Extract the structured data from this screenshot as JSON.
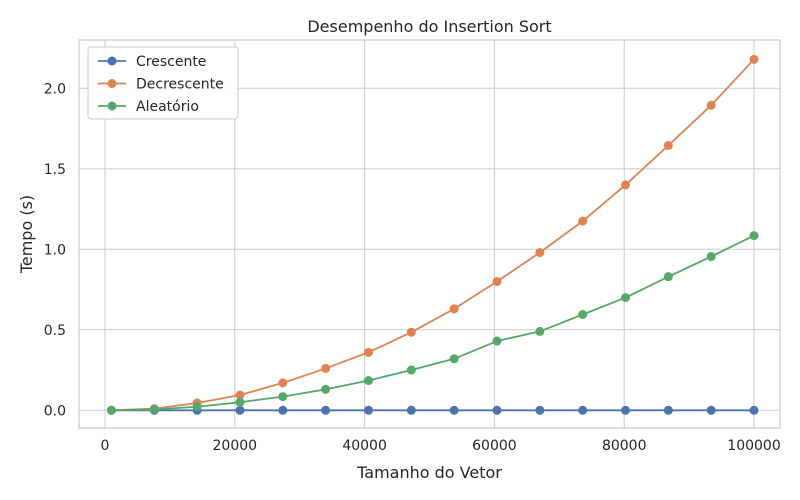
{
  "chart_data": {
    "type": "line",
    "title": "Desempenho do Insertion Sort",
    "xlabel": "Tamanho do Vetor",
    "ylabel": "Tempo (s)",
    "xlim": [
      -4000,
      104000
    ],
    "ylim": [
      -0.11,
      2.3
    ],
    "xticks": [
      0,
      20000,
      40000,
      60000,
      80000,
      100000
    ],
    "xtick_labels": [
      "0",
      "20000",
      "40000",
      "60000",
      "80000",
      "100000"
    ],
    "yticks": [
      0.0,
      0.5,
      1.0,
      1.5,
      2.0
    ],
    "ytick_labels": [
      "0.0",
      "0.5",
      "1.0",
      "1.5",
      "2.0"
    ],
    "grid": true,
    "legend_position": "top-left",
    "x": [
      1000,
      7600,
      14200,
      20800,
      27400,
      34000,
      40600,
      47200,
      53800,
      60400,
      67000,
      73600,
      80200,
      86800,
      93400,
      100000
    ],
    "series": [
      {
        "name": "Crescente",
        "color": "#4c72b0",
        "values": [
          0,
          0,
          0,
          0,
          0,
          0,
          0,
          0,
          0,
          0,
          0,
          0,
          0,
          0,
          0,
          0
        ]
      },
      {
        "name": "Decrescente",
        "color": "#dd8452",
        "values": [
          0.0,
          0.01,
          0.045,
          0.095,
          0.17,
          0.26,
          0.36,
          0.485,
          0.63,
          0.8,
          0.98,
          1.175,
          1.4,
          1.645,
          1.895,
          2.18
        ]
      },
      {
        "name": "Aleatório",
        "color": "#55a868",
        "values": [
          0.0,
          0.005,
          0.022,
          0.05,
          0.085,
          0.13,
          0.185,
          0.25,
          0.32,
          0.43,
          0.49,
          0.595,
          0.7,
          0.83,
          0.955,
          1.085
        ]
      }
    ]
  }
}
